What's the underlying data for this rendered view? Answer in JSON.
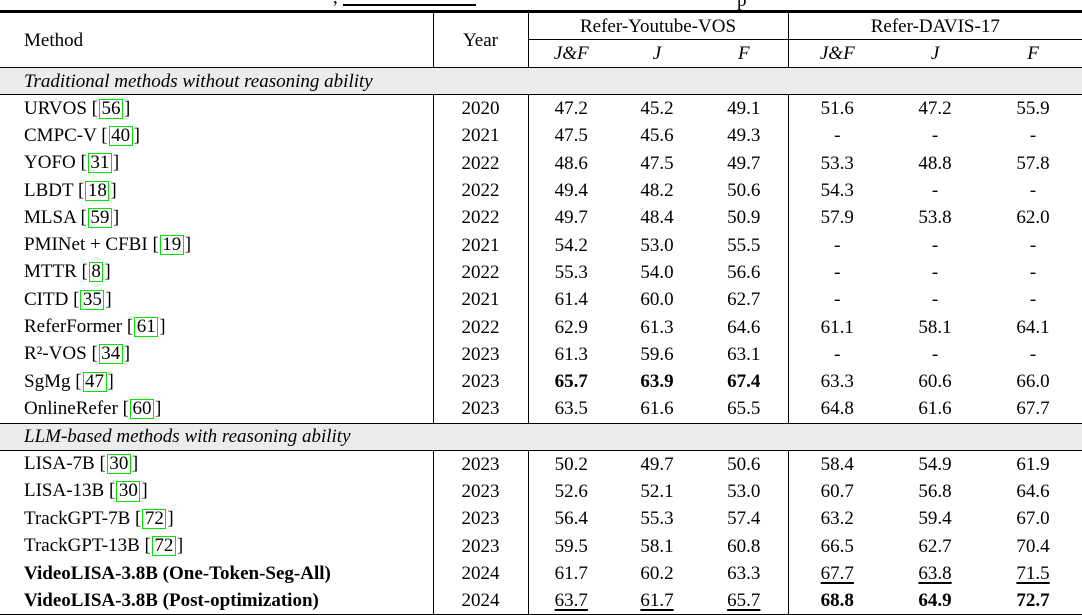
{
  "caption_fragments": {
    "comma": ",",
    "partial_word": "p"
  },
  "colors": {
    "cite_box_border": "#00e400",
    "section_band_bg": "#ececec",
    "rule_color": "#000000"
  },
  "table": {
    "headers": {
      "method": "Method",
      "year": "Year",
      "group1": "Refer-Youtube-VOS",
      "group2": "Refer-DAVIS-17",
      "metrics": [
        "J&F",
        "J",
        "F"
      ]
    },
    "sections": [
      {
        "label": "Traditional methods without reasoning ability",
        "rows": [
          {
            "method": "URVOS",
            "cite": "56",
            "year": "2020",
            "values": [
              "47.2",
              "45.2",
              "49.1",
              "51.6",
              "47.2",
              "55.9"
            ]
          },
          {
            "method": "CMPC-V",
            "cite": "40",
            "year": "2021",
            "values": [
              "47.5",
              "45.6",
              "49.3",
              "-",
              "-",
              "-"
            ]
          },
          {
            "method": "YOFO",
            "cite": "31",
            "year": "2022",
            "values": [
              "48.6",
              "47.5",
              "49.7",
              "53.3",
              "48.8",
              "57.8"
            ]
          },
          {
            "method": "LBDT",
            "cite": "18",
            "year": "2022",
            "values": [
              "49.4",
              "48.2",
              "50.6",
              "54.3",
              "-",
              "-"
            ]
          },
          {
            "method": "MLSA",
            "cite": "59",
            "year": "2022",
            "values": [
              "49.7",
              "48.4",
              "50.9",
              "57.9",
              "53.8",
              "62.0"
            ]
          },
          {
            "method": "PMINet + CFBI",
            "cite": "19",
            "year": "2021",
            "values": [
              "54.2",
              "53.0",
              "55.5",
              "-",
              "-",
              "-"
            ]
          },
          {
            "method": "MTTR",
            "cite": "8",
            "year": "2022",
            "values": [
              "55.3",
              "54.0",
              "56.6",
              "-",
              "-",
              "-"
            ]
          },
          {
            "method": "CITD",
            "cite": "35",
            "year": "2021",
            "values": [
              "61.4",
              "60.0",
              "62.7",
              "-",
              "-",
              "-"
            ]
          },
          {
            "method": "ReferFormer",
            "cite": "61",
            "year": "2022",
            "values": [
              "62.9",
              "61.3",
              "64.6",
              "61.1",
              "58.1",
              "64.1"
            ]
          },
          {
            "method": "R²-VOS",
            "cite": "34",
            "year": "2023",
            "values": [
              "61.3",
              "59.6",
              "63.1",
              "-",
              "-",
              "-"
            ]
          },
          {
            "method": "SgMg",
            "cite": "47",
            "year": "2023",
            "values": [
              "65.7",
              "63.9",
              "67.4",
              "63.3",
              "60.6",
              "66.0"
            ],
            "styles": [
              "b",
              "b",
              "b",
              "",
              "",
              ""
            ]
          },
          {
            "method": "OnlineRefer",
            "cite": "60",
            "year": "2023",
            "values": [
              "63.5",
              "61.6",
              "65.5",
              "64.8",
              "61.6",
              "67.7"
            ]
          }
        ]
      },
      {
        "label": "LLM-based methods with reasoning ability",
        "rows": [
          {
            "method": "LISA-7B",
            "cite": "30",
            "year": "2023",
            "values": [
              "50.2",
              "49.7",
              "50.6",
              "58.4",
              "54.9",
              "61.9"
            ]
          },
          {
            "method": "LISA-13B",
            "cite": "30",
            "year": "2023",
            "values": [
              "52.6",
              "52.1",
              "53.0",
              "60.7",
              "56.8",
              "64.6"
            ]
          },
          {
            "method": "TrackGPT-7B",
            "cite": "72",
            "year": "2023",
            "values": [
              "56.4",
              "55.3",
              "57.4",
              "63.2",
              "59.4",
              "67.0"
            ]
          },
          {
            "method": "TrackGPT-13B",
            "cite": "72",
            "year": "2023",
            "values": [
              "59.5",
              "58.1",
              "60.8",
              "66.5",
              "62.7",
              "70.4"
            ]
          },
          {
            "method": "VideoLISA-3.8B (One-Token-Seg-All)",
            "cite": "",
            "year": "2024",
            "method_bold": true,
            "values": [
              "61.7",
              "60.2",
              "63.3",
              "67.7",
              "63.8",
              "71.5"
            ],
            "styles": [
              "",
              "",
              "",
              "u",
              "u",
              "u"
            ]
          },
          {
            "method": "VideoLISA-3.8B (Post-optimization)",
            "cite": "",
            "year": "2024",
            "method_bold": true,
            "values": [
              "63.7",
              "61.7",
              "65.7",
              "68.8",
              "64.9",
              "72.7"
            ],
            "styles": [
              "u",
              "u",
              "u",
              "b",
              "b",
              "b"
            ]
          }
        ]
      }
    ]
  }
}
